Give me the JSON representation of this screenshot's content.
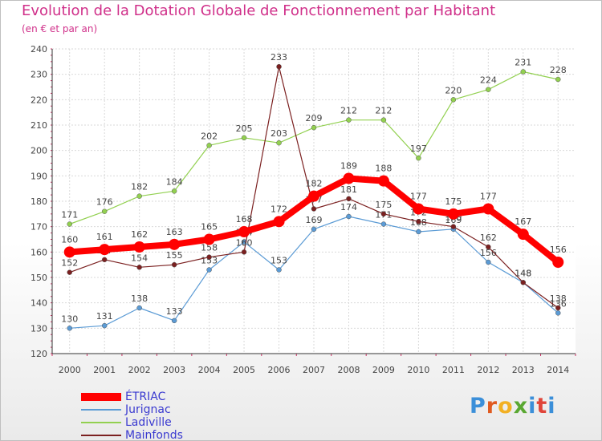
{
  "chart_data": {
    "type": "line",
    "title": "Evolution de la Dotation Globale de Fonctionnement par Habitant",
    "subtitle": "(en € et par an)",
    "xlabel": "",
    "ylabel": "",
    "ylim": [
      120,
      240
    ],
    "yticks": [
      120,
      130,
      140,
      150,
      160,
      170,
      180,
      190,
      200,
      210,
      220,
      230,
      240
    ],
    "categories": [
      "2000",
      "2001",
      "2002",
      "2003",
      "2004",
      "2005",
      "2006",
      "2007",
      "2008",
      "2009",
      "2010",
      "2011",
      "2012",
      "2013",
      "2014"
    ],
    "legend_position": "bottom-left",
    "series": [
      {
        "name": "ÉTRIAC",
        "color": "#ff0000",
        "emphasis": true,
        "values": [
          160,
          161,
          162,
          163,
          165,
          168,
          172,
          182,
          189,
          188,
          177,
          175,
          177,
          167,
          156
        ]
      },
      {
        "name": "Jurignac",
        "color": "#5b9bd5",
        "emphasis": false,
        "values": [
          130,
          131,
          138,
          133,
          153,
          164,
          153,
          169,
          174,
          171,
          168,
          169,
          156,
          148,
          136
        ]
      },
      {
        "name": "Ladiville",
        "color": "#92d050",
        "emphasis": false,
        "values": [
          171,
          176,
          182,
          184,
          202,
          205,
          203,
          209,
          212,
          212,
          197,
          220,
          224,
          231,
          228
        ]
      },
      {
        "name": "Mainfonds",
        "color": "#7b2020",
        "emphasis": false,
        "values": [
          152,
          157,
          154,
          155,
          158,
          160,
          233,
          177,
          181,
          175,
          172,
          170,
          162,
          148,
          138
        ]
      }
    ]
  },
  "logo": {
    "text": "Proxiti",
    "colors": [
      "#3b8fd9",
      "#e05a20",
      "#f2b024",
      "#5aa832",
      "#3b8fd9",
      "#e0453a",
      "#3b8fd9"
    ]
  }
}
